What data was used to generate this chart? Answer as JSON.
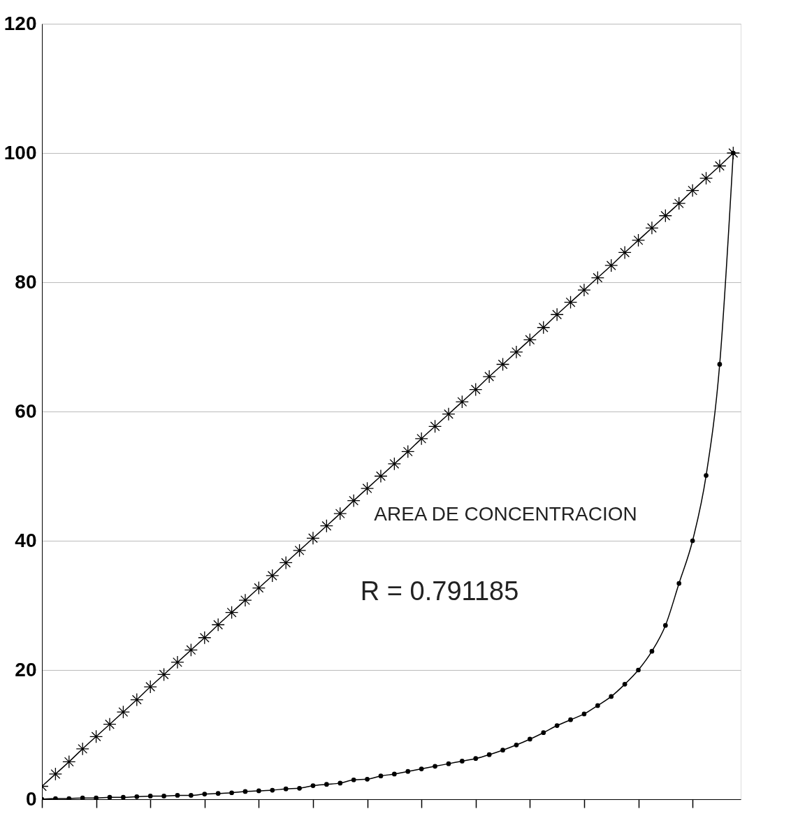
{
  "chart_data": {
    "type": "line",
    "categories": [
      null,
      null,
      null,
      null,
      null,
      null,
      null,
      null,
      null,
      null,
      null,
      null,
      null,
      null,
      null,
      null,
      null,
      null,
      null,
      null,
      null,
      null,
      null,
      null,
      null,
      null,
      null,
      null,
      null,
      null,
      null,
      null,
      null,
      null,
      null,
      null,
      null,
      null,
      null,
      null,
      null,
      null,
      null,
      null,
      null,
      null,
      null,
      null,
      null,
      null,
      null,
      null
    ],
    "series": [
      {
        "color": "#000000",
        "marker": "cross",
        "values": [
          2,
          3.9,
          5.8,
          7.8,
          9.7,
          11.6,
          13.5,
          15.4,
          17.4,
          19.3,
          21.2,
          23.1,
          25,
          27,
          28.9,
          30.8,
          32.7,
          34.6,
          36.6,
          38.5,
          40.4,
          42.3,
          44.2,
          46.2,
          48.1,
          50,
          51.9,
          53.8,
          55.8,
          57.7,
          59.6,
          61.5,
          63.4,
          65.4,
          67.3,
          69.2,
          71.1,
          73,
          75,
          76.9,
          78.8,
          80.7,
          82.6,
          84.6,
          86.5,
          88.4,
          90.3,
          92.2,
          94.2,
          96.1,
          98,
          100
        ]
      },
      {
        "color": "#000000",
        "marker": "circle",
        "values": [
          0,
          0.1,
          0.1,
          0.2,
          0.2,
          0.3,
          0.3,
          0.4,
          0.5,
          0.5,
          0.6,
          0.6,
          0.8,
          0.9,
          1,
          1.2,
          1.3,
          1.4,
          1.6,
          1.7,
          2.1,
          2.3,
          2.5,
          3,
          3.1,
          3.6,
          3.9,
          4.3,
          4.7,
          5.1,
          5.5,
          5.9,
          6.3,
          6.9,
          7.6,
          8.4,
          9.3,
          10.3,
          11.4,
          12.3,
          13.2,
          14.5,
          15.9,
          17.8,
          20,
          22.9,
          26.9,
          33.4,
          40,
          50.1,
          67.3,
          100
        ]
      }
    ],
    "ylim": [
      0,
      120
    ],
    "yticks": [
      0,
      20,
      40,
      60,
      80,
      100,
      120
    ],
    "grid": "y",
    "tick_labels": "y",
    "annotations": [
      "AREA DE CONCENTRACION",
      "R = 0.791185"
    ]
  }
}
